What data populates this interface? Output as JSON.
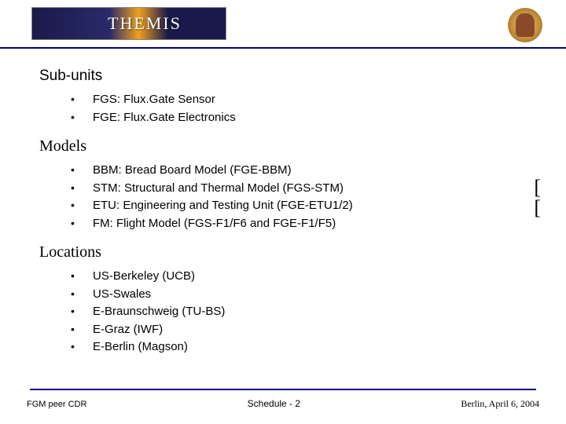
{
  "header": {
    "logo_text": "THEMIS"
  },
  "sections": [
    {
      "title": "Sub-units",
      "title_font": "sans",
      "items": [
        "FGS: Flux.Gate Sensor",
        "FGE: Flux.Gate Electronics"
      ]
    },
    {
      "title": "Models",
      "title_font": "serif",
      "items": [
        "BBM: Bread Board Model (FGE-BBM)",
        "STM: Structural and Thermal Model (FGS-STM)",
        "ETU: Engineering and Testing Unit (FGE-ETU1/2)",
        "FM: Flight Model (FGS-F1/F6 and FGE-F1/F5)"
      ]
    },
    {
      "title": "Locations",
      "title_font": "serif",
      "items": [
        "US-Berkeley (UCB)",
        "US-Swales",
        "E-Braunschweig (TU-BS)",
        "E-Graz (IWF)",
        "E-Berlin (Magson)"
      ]
    }
  ],
  "side_marks": [
    "[",
    "["
  ],
  "footer": {
    "left": "FGM peer CDR",
    "center": "Schedule - 2",
    "right": "Berlin, April 6, 2004"
  },
  "colors": {
    "rule": "#000080",
    "text": "#000000",
    "bg": "#ffffff"
  }
}
